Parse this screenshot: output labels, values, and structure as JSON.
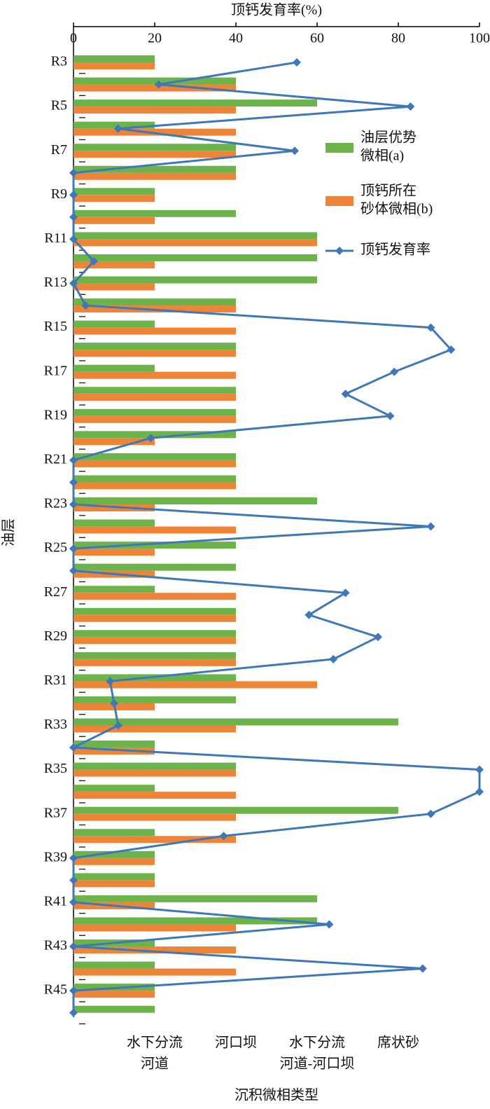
{
  "chart_data": {
    "type": "bar_line",
    "title": "顶钙发育率(%)",
    "xlabel": "沉积微相类型",
    "ylabel": "油层",
    "categories": [
      "R3",
      null,
      "R5",
      null,
      "R7",
      null,
      "R9",
      null,
      "R11",
      null,
      "R13",
      null,
      "R15",
      null,
      "R17",
      null,
      "R19",
      null,
      "R21",
      null,
      "R23",
      null,
      "R25",
      null,
      "R27",
      null,
      "R29",
      null,
      "R31",
      null,
      "R33",
      null,
      "R35",
      null,
      "R37",
      null,
      "R39",
      null,
      "R41",
      null,
      "R43",
      null,
      "R45",
      null
    ],
    "xlim": [
      0,
      100
    ],
    "xticks": [
      0,
      20,
      40,
      60,
      80,
      100
    ],
    "bar_xlim": [
      0,
      5
    ],
    "bar_xticks": [
      {
        "value": 1,
        "label": [
          "水下分流",
          "河道"
        ]
      },
      {
        "value": 2,
        "label": [
          "河口坝"
        ]
      },
      {
        "value": 3,
        "label": [
          "水下分流",
          "河道-河口坝"
        ]
      },
      {
        "value": 4,
        "label": [
          "席状砂"
        ]
      }
    ],
    "legend": "upper right",
    "series": [
      {
        "name": [
          "油层优势",
          "微相(a)"
        ],
        "type": "bar",
        "color": "#6db34b",
        "values": [
          1,
          2,
          3,
          1,
          2,
          2,
          1,
          2,
          3,
          3,
          3,
          2,
          1,
          2,
          1,
          2,
          2,
          2,
          2,
          2,
          3,
          1,
          2,
          2,
          1,
          2,
          2,
          2,
          2,
          2,
          4,
          1,
          2,
          1,
          4,
          1,
          1,
          1,
          3,
          3,
          1,
          1,
          1,
          1
        ]
      },
      {
        "name": [
          "顶钙所在",
          "砂体微相(b)"
        ],
        "type": "bar",
        "color": "#ee8438",
        "values": [
          1,
          2,
          2,
          2,
          2,
          2,
          1,
          1,
          3,
          1,
          1,
          2,
          2,
          2,
          2,
          2,
          2,
          1,
          2,
          2,
          1,
          2,
          1,
          1,
          2,
          2,
          2,
          2,
          3,
          1,
          2,
          1,
          2,
          2,
          2,
          2,
          1,
          1,
          1,
          2,
          2,
          2,
          1,
          null
        ]
      },
      {
        "name": [
          "顶钙发育率"
        ],
        "type": "line",
        "color": "#3f78b8",
        "values": [
          55,
          21,
          83,
          11,
          54.5,
          0,
          0,
          0,
          0,
          5,
          0,
          3,
          88,
          93,
          79,
          67,
          78,
          19,
          0,
          0,
          0,
          88,
          0,
          0,
          67,
          58,
          75,
          64,
          9,
          10,
          11,
          0,
          100,
          100,
          88,
          37,
          0,
          0,
          0,
          63,
          0,
          86,
          0,
          0
        ]
      }
    ]
  }
}
